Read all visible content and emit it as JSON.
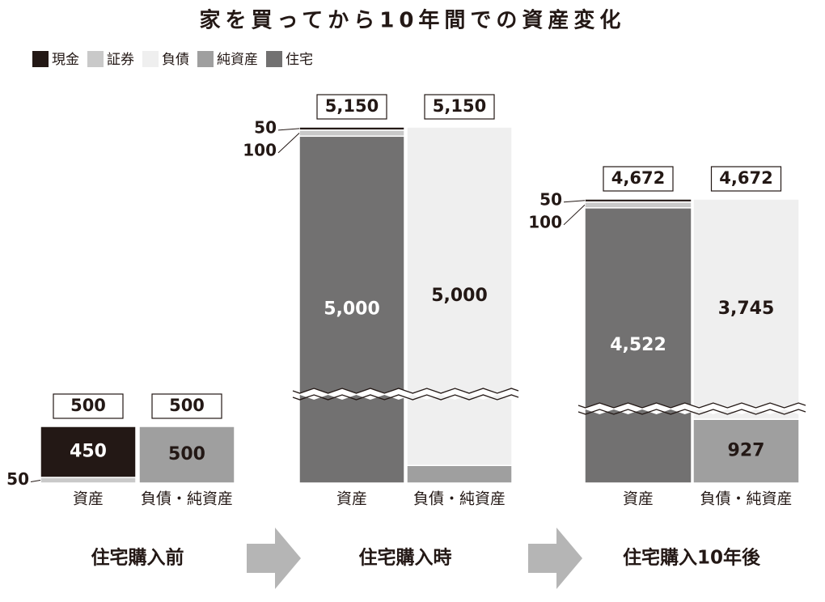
{
  "chart_data": {
    "type": "stacked-bar",
    "title": "家を買ってから10年間での資産変化",
    "groups": [
      "住宅購入前",
      "住宅購入時",
      "住宅購入10年後"
    ],
    "categories": [
      "資産",
      "負債・純資産",
      "資産",
      "負債・純資産",
      "資産",
      "負債・純資産"
    ],
    "totals": [
      500,
      500,
      5150,
      5150,
      4672,
      4672
    ],
    "total_labels": [
      "500",
      "500",
      "5,150",
      "5,150",
      "4,672",
      "4,672"
    ],
    "series": [
      {
        "name": "現金",
        "color": "#231815",
        "values": [
          450,
          null,
          50,
          null,
          50,
          null
        ]
      },
      {
        "name": "証券",
        "color": "#c9c9c9",
        "values": [
          50,
          null,
          100,
          null,
          100,
          null
        ]
      },
      {
        "name": "負債",
        "color": "#efefef",
        "values": [
          null,
          null,
          null,
          5000,
          null,
          3745
        ],
        "value_labels": [
          null,
          null,
          null,
          "5,000",
          null,
          "3,745"
        ]
      },
      {
        "name": "純資産",
        "color": "#9f9f9f",
        "values": [
          null,
          500,
          null,
          150,
          null,
          927
        ],
        "value_labels": [
          null,
          "500",
          null,
          null,
          null,
          "927"
        ]
      },
      {
        "name": "住宅",
        "color": "#727171",
        "values": [
          null,
          null,
          5000,
          null,
          4522,
          null
        ],
        "value_labels": [
          null,
          null,
          "5,000",
          null,
          "4,522",
          null
        ]
      }
    ]
  }
}
